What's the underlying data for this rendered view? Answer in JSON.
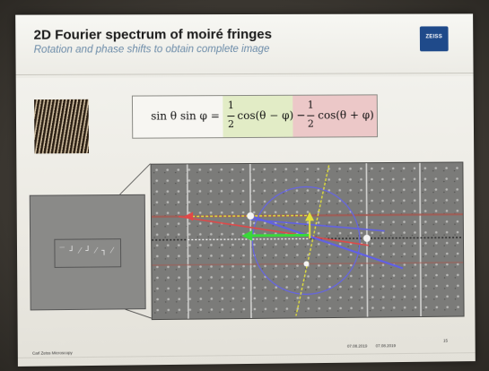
{
  "slide": {
    "title": "2D Fourier spectrum of moiré fringes",
    "subtitle": "Rotation and phase shifts to obtain complete image",
    "logo_text": "ZEISS",
    "logo_color": "#1f4a8a",
    "subtitle_color": "#6b8ba8"
  },
  "equation": {
    "lhs": "sin θ sin φ =",
    "term1_num": "1",
    "term1_den": "2",
    "term1_func": "cos(θ − φ)",
    "minus": "−",
    "term2_num": "1",
    "term2_den": "2",
    "term2_func": "cos(θ + φ)",
    "highlight_term1_color": "#e2ecc6",
    "highlight_term2_color": "#ecc8c8"
  },
  "footer": {
    "left": "Carl Zeiss Microscopy",
    "date1": "07.08.2019",
    "date2": "07.08.2019",
    "page": "15"
  },
  "icons": {
    "thumbnail": "moire-fringe-pattern-icon",
    "inset": "real-space-image-icon",
    "fft": "fourier-spectrum-icon"
  }
}
